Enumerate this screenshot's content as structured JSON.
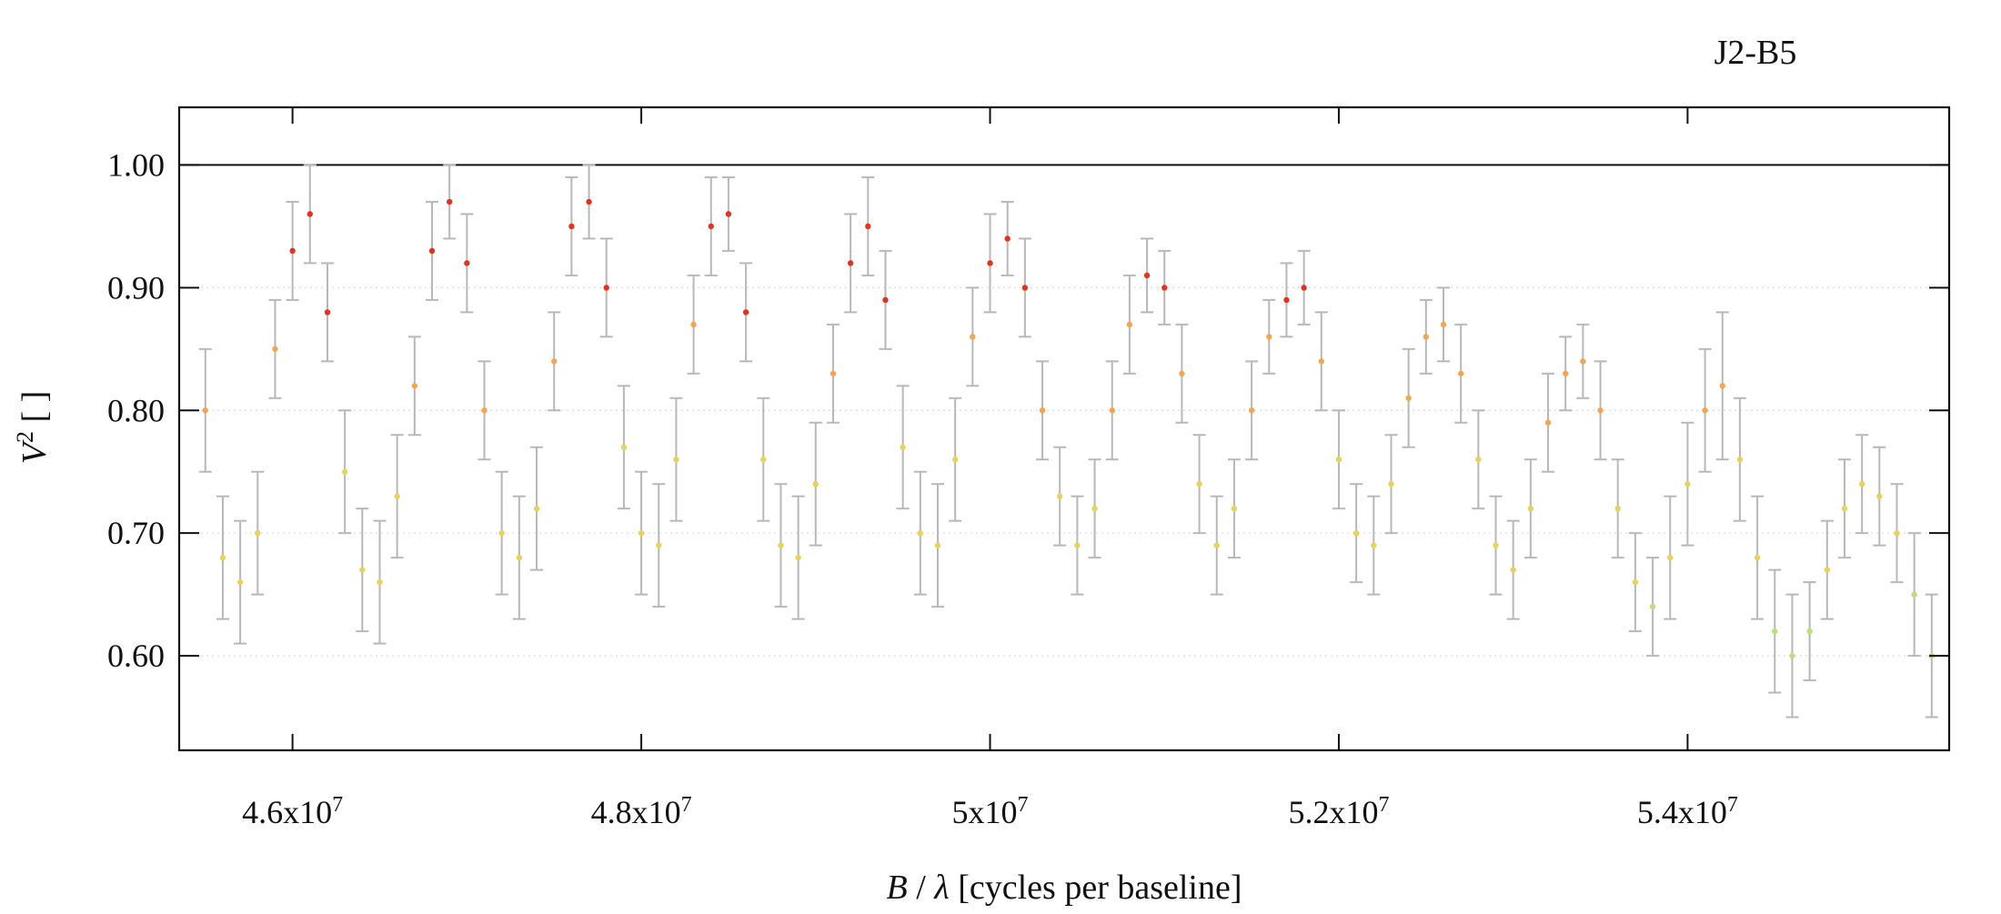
{
  "chart_data": {
    "type": "scatter",
    "title": "J2-B5",
    "xlabel": {
      "var": "B",
      "sep": " / ",
      "sym": "λ",
      "rest": " [cycles per baseline]"
    },
    "ylabel": {
      "var": "V",
      "sup": "2",
      "rest": " [ ]"
    },
    "xlim": [
      45350000,
      55500000
    ],
    "ylim": [
      0.523,
      1.047
    ],
    "x_ticks": [
      {
        "value": 46000000,
        "base": "4.6x10",
        "exp": "7"
      },
      {
        "value": 48000000,
        "base": "4.8x10",
        "exp": "7"
      },
      {
        "value": 50000000,
        "base": "5x10",
        "exp": "7"
      },
      {
        "value": 52000000,
        "base": "5.2x10",
        "exp": "7"
      },
      {
        "value": 54000000,
        "base": "5.4x10",
        "exp": "7"
      }
    ],
    "y_ticks": [
      {
        "value": 0.6,
        "label": "0.60"
      },
      {
        "value": 0.7,
        "label": "0.70"
      },
      {
        "value": 0.8,
        "label": "0.80"
      },
      {
        "value": 0.9,
        "label": "0.90"
      },
      {
        "value": 1.0,
        "label": "1.00"
      }
    ],
    "reference_line": 1.0,
    "grid": "horizontal dotted",
    "colors": {
      "errorbar": "#b8b8b8",
      "low": "#b9e07a",
      "mid_low": "#e8d25c",
      "mid": "#f5a551",
      "high": "#e2331f"
    },
    "series": [
      {
        "marker": "dot with vertical error bar",
        "color_by": "y value (green → yellow → orange → red)",
        "points": [
          [
            45500000,
            0.8,
            0.05
          ],
          [
            45600000,
            0.68,
            0.05
          ],
          [
            45700000,
            0.66,
            0.05
          ],
          [
            45800000,
            0.7,
            0.05
          ],
          [
            45900000,
            0.85,
            0.04
          ],
          [
            46000000,
            0.93,
            0.04
          ],
          [
            46100000,
            0.96,
            0.04
          ],
          [
            46200000,
            0.88,
            0.04
          ],
          [
            46300000,
            0.75,
            0.05
          ],
          [
            46400000,
            0.67,
            0.05
          ],
          [
            46500000,
            0.66,
            0.05
          ],
          [
            46600000,
            0.73,
            0.05
          ],
          [
            46700000,
            0.82,
            0.04
          ],
          [
            46800000,
            0.93,
            0.04
          ],
          [
            46900000,
            0.97,
            0.03
          ],
          [
            47000000,
            0.92,
            0.04
          ],
          [
            47100000,
            0.8,
            0.04
          ],
          [
            47200000,
            0.7,
            0.05
          ],
          [
            47300000,
            0.68,
            0.05
          ],
          [
            47400000,
            0.72,
            0.05
          ],
          [
            47500000,
            0.84,
            0.04
          ],
          [
            47600000,
            0.95,
            0.04
          ],
          [
            47700000,
            0.97,
            0.03
          ],
          [
            47800000,
            0.9,
            0.04
          ],
          [
            47900000,
            0.77,
            0.05
          ],
          [
            48000000,
            0.7,
            0.05
          ],
          [
            48100000,
            0.69,
            0.05
          ],
          [
            48200000,
            0.76,
            0.05
          ],
          [
            48300000,
            0.87,
            0.04
          ],
          [
            48400000,
            0.95,
            0.04
          ],
          [
            48500000,
            0.96,
            0.03
          ],
          [
            48600000,
            0.88,
            0.04
          ],
          [
            48700000,
            0.76,
            0.05
          ],
          [
            48800000,
            0.69,
            0.05
          ],
          [
            48900000,
            0.68,
            0.05
          ],
          [
            49000000,
            0.74,
            0.05
          ],
          [
            49100000,
            0.83,
            0.04
          ],
          [
            49200000,
            0.92,
            0.04
          ],
          [
            49300000,
            0.95,
            0.04
          ],
          [
            49400000,
            0.89,
            0.04
          ],
          [
            49500000,
            0.77,
            0.05
          ],
          [
            49600000,
            0.7,
            0.05
          ],
          [
            49700000,
            0.69,
            0.05
          ],
          [
            49800000,
            0.76,
            0.05
          ],
          [
            49900000,
            0.86,
            0.04
          ],
          [
            50000000,
            0.92,
            0.04
          ],
          [
            50100000,
            0.94,
            0.03
          ],
          [
            50200000,
            0.9,
            0.04
          ],
          [
            50300000,
            0.8,
            0.04
          ],
          [
            50400000,
            0.73,
            0.04
          ],
          [
            50500000,
            0.69,
            0.04
          ],
          [
            50600000,
            0.72,
            0.04
          ],
          [
            50700000,
            0.8,
            0.04
          ],
          [
            50800000,
            0.87,
            0.04
          ],
          [
            50900000,
            0.91,
            0.03
          ],
          [
            51000000,
            0.9,
            0.03
          ],
          [
            51100000,
            0.83,
            0.04
          ],
          [
            51200000,
            0.74,
            0.04
          ],
          [
            51300000,
            0.69,
            0.04
          ],
          [
            51400000,
            0.72,
            0.04
          ],
          [
            51500000,
            0.8,
            0.04
          ],
          [
            51600000,
            0.86,
            0.03
          ],
          [
            51700000,
            0.89,
            0.03
          ],
          [
            51800000,
            0.9,
            0.03
          ],
          [
            51900000,
            0.84,
            0.04
          ],
          [
            52000000,
            0.76,
            0.04
          ],
          [
            52100000,
            0.7,
            0.04
          ],
          [
            52200000,
            0.69,
            0.04
          ],
          [
            52300000,
            0.74,
            0.04
          ],
          [
            52400000,
            0.81,
            0.04
          ],
          [
            52500000,
            0.86,
            0.03
          ],
          [
            52600000,
            0.87,
            0.03
          ],
          [
            52700000,
            0.83,
            0.04
          ],
          [
            52800000,
            0.76,
            0.04
          ],
          [
            52900000,
            0.69,
            0.04
          ],
          [
            53000000,
            0.67,
            0.04
          ],
          [
            53100000,
            0.72,
            0.04
          ],
          [
            53200000,
            0.79,
            0.04
          ],
          [
            53300000,
            0.83,
            0.03
          ],
          [
            53400000,
            0.84,
            0.03
          ],
          [
            53500000,
            0.8,
            0.04
          ],
          [
            53600000,
            0.72,
            0.04
          ],
          [
            53700000,
            0.66,
            0.04
          ],
          [
            53800000,
            0.64,
            0.04
          ],
          [
            53900000,
            0.68,
            0.05
          ],
          [
            54000000,
            0.74,
            0.05
          ],
          [
            54100000,
            0.8,
            0.05
          ],
          [
            54200000,
            0.82,
            0.06
          ],
          [
            54300000,
            0.76,
            0.05
          ],
          [
            54400000,
            0.68,
            0.05
          ],
          [
            54500000,
            0.62,
            0.05
          ],
          [
            54600000,
            0.6,
            0.05
          ],
          [
            54700000,
            0.62,
            0.04
          ],
          [
            54800000,
            0.67,
            0.04
          ],
          [
            54900000,
            0.72,
            0.04
          ],
          [
            55000000,
            0.74,
            0.04
          ],
          [
            55100000,
            0.73,
            0.04
          ],
          [
            55200000,
            0.7,
            0.04
          ],
          [
            55300000,
            0.65,
            0.05
          ],
          [
            55400000,
            0.6,
            0.05
          ]
        ]
      }
    ]
  }
}
